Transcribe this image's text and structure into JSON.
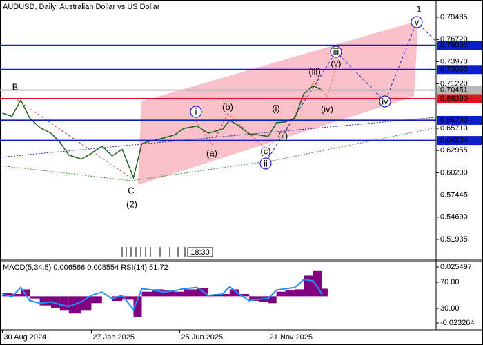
{
  "chart_data": [
    {
      "type": "line",
      "title": "AUDUSD, Daily:  Australian Dollar vs US Dollar",
      "x": [
        "2024-08-30",
        "2024-09-15",
        "2024-09-30",
        "2024-10-15",
        "2024-11-01",
        "2024-11-20",
        "2024-12-05",
        "2024-12-20",
        "2025-01-10",
        "2025-01-27",
        "2025-02-14",
        "2025-03-03",
        "2025-03-20",
        "2025-04-08",
        "2025-04-22",
        "2025-05-10",
        "2025-05-28",
        "2025-06-16",
        "2025-07-02",
        "2025-07-24",
        "2025-08-12",
        "2025-09-05",
        "2025-09-17",
        "2025-10-03",
        "2025-10-20",
        "2025-11-05",
        "2025-11-21",
        "2025-12-05",
        "2025-12-20",
        "2026-01-05",
        "2026-01-20",
        "2026-02-05",
        "2026-02-20"
      ],
      "xlim": [
        "2024-08-26",
        "2026-08-31"
      ],
      "series": [
        {
          "color": "#1f5f1f",
          "values": [
            0.676,
            0.672,
            0.692,
            0.67,
            0.658,
            0.651,
            0.64,
            0.624,
            0.619,
            0.626,
            0.635,
            0.623,
            0.631,
            0.596,
            0.638,
            0.642,
            0.645,
            0.649,
            0.657,
            0.66,
            0.651,
            0.656,
            0.667,
            0.66,
            0.65,
            0.649,
            0.647,
            0.664,
            0.665,
            0.67,
            0.7,
            0.71,
            0.7045
          ]
        }
      ],
      "ylim": [
        0.498,
        0.8162
      ],
      "yticks": [
        0.79485,
        {
          "value": 0.7672,
          "label": "0.76720"
        },
        {
          "value": 0.7397,
          "label": "0.73970"
        },
        {
          "value": 0.7122,
          "label": "0.71220"
        },
        {
          "value": 0.6571,
          "label": "0.65710"
        },
        0.62955,
        {
          "value": 0.602,
          "label": "0.60200"
        },
        0.57445,
        {
          "value": 0.5469,
          "label": "0.54690"
        },
        0.51935
      ],
      "levels": [
        {
          "value": 0.76,
          "label": "0.76000",
          "color": "#0a1fc8"
        },
        {
          "value": 0.73,
          "label": "0.73000",
          "color": "#0a1fc8"
        },
        {
          "value": 0.70451,
          "label": "0.70451",
          "color": "#b8b8b8"
        },
        {
          "value": 0.6939,
          "label": "0.69390",
          "color": "#e0141e"
        },
        {
          "value": 0.667,
          "label": "0.66700",
          "color": "#0a1fc8"
        },
        {
          "value": 0.64204,
          "label": "0.64204",
          "color": "#0a1fc8"
        }
      ],
      "annotations": [
        {
          "text": "1",
          "color": "#b03030",
          "circled": false
        },
        {
          "text": "B",
          "color": "#b03030",
          "circled": false
        },
        {
          "text": "C",
          "color": "#b03030",
          "circled": false
        },
        {
          "text": "(2)",
          "color": "#2e8b2e",
          "circled": false
        },
        {
          "text": "i",
          "color": "#2020c0",
          "circled": true
        },
        {
          "text": "ii",
          "color": "#2020c0",
          "circled": true
        },
        {
          "text": "iii",
          "color": "#2020c0",
          "circled": true
        },
        {
          "text": "iv",
          "color": "#2020c0",
          "circled": true
        },
        {
          "text": "v",
          "color": "#2020c0",
          "circled": true
        },
        {
          "text": "(a)",
          "color": "#d03030",
          "circled": false
        },
        {
          "text": "(b)",
          "color": "#d03030",
          "circled": false
        },
        {
          "text": "(c)",
          "color": "#d03030",
          "circled": false
        },
        {
          "text": "(i)",
          "color": "#f07030",
          "circled": false
        },
        {
          "text": "(ii)",
          "color": "#f07030",
          "circled": false
        },
        {
          "text": "(iii)",
          "color": "#f07030",
          "circled": false
        },
        {
          "text": "(iv)",
          "color": "#f07030",
          "circled": false
        },
        {
          "text": "(v)",
          "color": "#f07030",
          "circled": false
        }
      ],
      "time_label": "18:30"
    },
    {
      "type": "bar",
      "title": "MACD(5,34,5) 0.006566 0.008554 RSI(14) 51.72",
      "x": [
        "2024-08-30",
        "2024-09-15",
        "2024-09-30",
        "2024-10-15",
        "2024-11-01",
        "2024-11-20",
        "2024-12-05",
        "2024-12-20",
        "2025-01-10",
        "2025-01-27",
        "2025-02-14",
        "2025-03-03",
        "2025-03-20",
        "2025-04-08",
        "2025-04-22",
        "2025-05-10",
        "2025-05-28",
        "2025-06-16",
        "2025-07-02",
        "2025-07-24",
        "2025-08-12",
        "2025-09-05",
        "2025-09-17",
        "2025-10-03",
        "2025-10-20",
        "2025-11-05",
        "2025-11-21",
        "2025-12-05",
        "2025-12-20",
        "2026-01-05",
        "2026-01-20",
        "2026-02-05",
        "2026-02-20"
      ],
      "xlim": [
        "2024-08-26",
        "2026-08-31"
      ],
      "xticks": [
        {
          "value": "2024-08-30",
          "label": "30 Aug 2024"
        },
        {
          "value": "2025-01-27",
          "label": "27 Jan 2025"
        },
        {
          "value": "2025-06-25",
          "label": "25 Jun 2025"
        },
        {
          "value": "2025-11-21",
          "label": "21 Nov 2025"
        }
      ],
      "series": [
        {
          "color": "#800080",
          "values": [
            0.003,
            0.002,
            0.006,
            -0.002,
            -0.008,
            -0.01,
            -0.012,
            -0.015,
            -0.012,
            -0.006,
            0.0,
            -0.004,
            -0.003,
            -0.018,
            0.004,
            0.006,
            0.005,
            0.004,
            0.006,
            0.007,
            0.001,
            0.002,
            0.006,
            0.002,
            -0.004,
            -0.005,
            -0.006,
            0.004,
            0.005,
            0.006,
            0.018,
            0.022,
            0.006566
          ]
        },
        {
          "type": "line",
          "axis": "y2",
          "color": "#1e90ff",
          "values": [
            52,
            48,
            62,
            42,
            38,
            40,
            36,
            33,
            40,
            50,
            55,
            45,
            50,
            28,
            60,
            58,
            55,
            57,
            60,
            62,
            50,
            52,
            63,
            52,
            42,
            44,
            45,
            58,
            60,
            62,
            74,
            72,
            51.72
          ]
        }
      ],
      "ylim": [
        -0.029285,
        0.030915
      ],
      "yticks": [
        0.025497,
        -0.023264
      ],
      "y2lim": [
        -2.6,
        102.6
      ],
      "y2ticks": [
        {
          "value": 70,
          "label": "70.00"
        },
        {
          "value": 30,
          "label": "30.00"
        }
      ]
    }
  ]
}
